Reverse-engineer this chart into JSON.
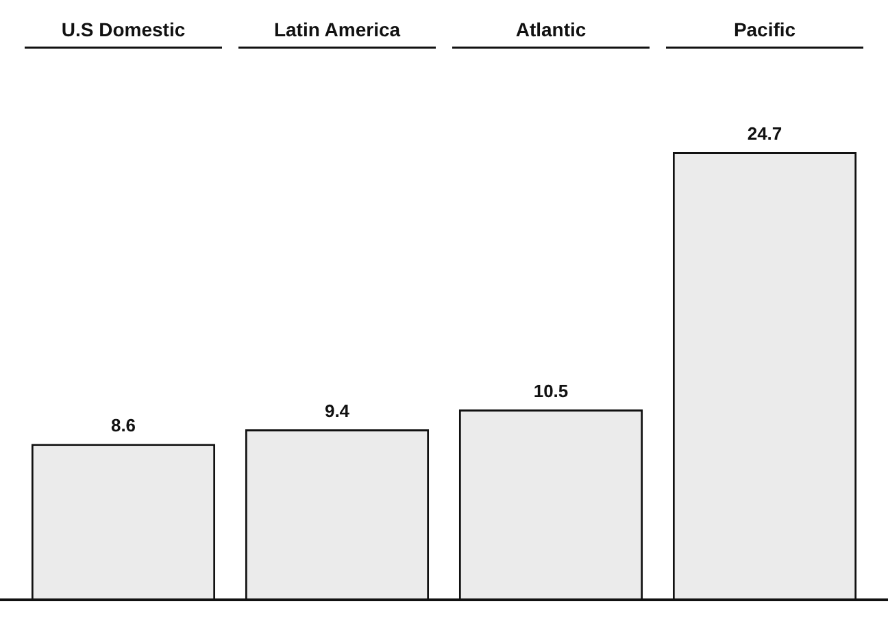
{
  "chart_data": {
    "type": "bar",
    "categories": [
      "U.S Domestic",
      "Latin America",
      "Atlantic",
      "Pacific"
    ],
    "values": [
      8.6,
      9.4,
      10.5,
      24.7
    ],
    "color": "#ebebeb",
    "data_labels": true,
    "grid": false,
    "legend": false
  }
}
